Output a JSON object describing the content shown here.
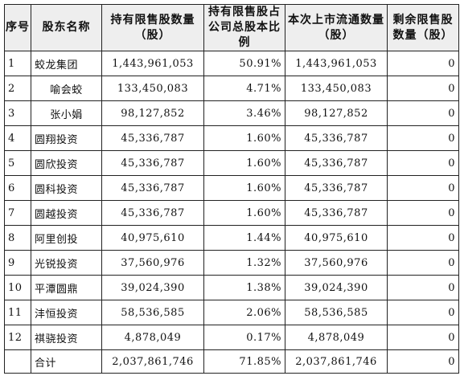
{
  "table": {
    "headers": {
      "seq": "序号",
      "name": "股东名称",
      "restricted_shares": "持有限售股数量（股）",
      "ratio": "持有限售股占公司总股本比例",
      "listed_shares": "本次上市流通数量（股）",
      "remaining": "剩余限售股数量（股）"
    },
    "rows": [
      {
        "seq": "1",
        "name": "蛟龙集团",
        "shares": "1,443,961,053",
        "ratio": "50.91%",
        "listed": "1,443,961,053",
        "remaining": "0"
      },
      {
        "seq": "2",
        "name": "喻会蛟",
        "shares": "133,450,083",
        "ratio": "4.71%",
        "listed": "133,450,083",
        "remaining": "0"
      },
      {
        "seq": "3",
        "name": "张小娟",
        "shares": "98,127,852",
        "ratio": "3.46%",
        "listed": "98,127,852",
        "remaining": "0"
      },
      {
        "seq": "4",
        "name": "圆翔投资",
        "shares": "45,336,787",
        "ratio": "1.60%",
        "listed": "45,336,787",
        "remaining": "0"
      },
      {
        "seq": "5",
        "name": "圆欣投资",
        "shares": "45,336,787",
        "ratio": "1.60%",
        "listed": "45,336,787",
        "remaining": "0"
      },
      {
        "seq": "6",
        "name": "圆科投资",
        "shares": "45,336,787",
        "ratio": "1.60%",
        "listed": "45,336,787",
        "remaining": "0"
      },
      {
        "seq": "7",
        "name": "圆越投资",
        "shares": "45,336,787",
        "ratio": "1.60%",
        "listed": "45,336,787",
        "remaining": "0"
      },
      {
        "seq": "8",
        "name": "阿里创投",
        "shares": "40,975,610",
        "ratio": "1.44%",
        "listed": "40,975,610",
        "remaining": "0"
      },
      {
        "seq": "9",
        "name": "光锐投资",
        "shares": "37,560,976",
        "ratio": "1.32%",
        "listed": "37,560,976",
        "remaining": "0"
      },
      {
        "seq": "10",
        "name": "平潭圆鼎",
        "shares": "39,024,390",
        "ratio": "1.38%",
        "listed": "39,024,390",
        "remaining": "0"
      },
      {
        "seq": "11",
        "name": "沣恒投资",
        "shares": "58,536,585",
        "ratio": "2.06%",
        "listed": "58,536,585",
        "remaining": "0"
      },
      {
        "seq": "12",
        "name": "祺骁投资",
        "shares": "4,878,049",
        "ratio": "0.17%",
        "listed": "4,878,049",
        "remaining": "0"
      }
    ],
    "total": {
      "label": "合计",
      "shares": "2,037,861,746",
      "ratio": "71.85%",
      "listed": "2,037,861,746",
      "remaining": "0"
    }
  }
}
